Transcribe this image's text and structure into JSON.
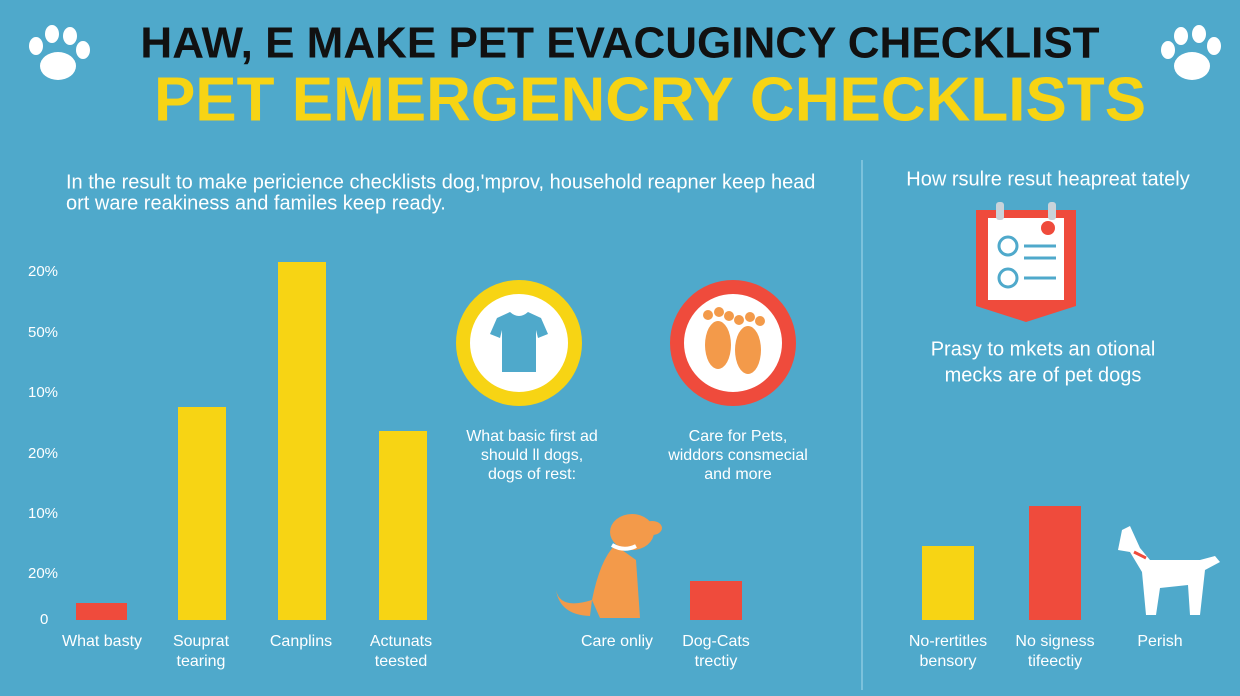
{
  "header": {
    "title": "HAW, E MAKE PET EVACUGINCY CHECKLIST",
    "subtitle": "PET EMERGENCRY CHECKLISTS"
  },
  "intro": {
    "lines": [
      "In the result to make pericience checklists dog,'mprov, household reapner keep head",
      "ort ware reakiness and familes keep ready."
    ]
  },
  "axis_labels": [
    "20%",
    "50%",
    "10%",
    "20%",
    "10%",
    "20%",
    "0"
  ],
  "left_labels": [
    [
      "What basty"
    ],
    [
      "Souprat",
      "tearing"
    ],
    [
      "Canplins"
    ],
    [
      "Actunats",
      "teested"
    ]
  ],
  "cards": [
    {
      "lines": [
        "What basic first ad",
        "should ll dogs,",
        "dogs of rest:"
      ]
    },
    {
      "lines": [
        "Care for Pets,",
        "widdors consmecial",
        "and more"
      ]
    }
  ],
  "middle_labels": [
    [
      "Care onliy"
    ],
    [
      "Dog-Cats",
      "trectiy"
    ]
  ],
  "right_panel": {
    "heading": "How rsulre resut heapreat tately",
    "lines": [
      "Prasy to mkets an otional",
      "mecks are of pet dogs"
    ],
    "labels": [
      [
        "No-rertitles",
        "bensory"
      ],
      [
        "No signess",
        "tifeectiy"
      ],
      [
        "Perish"
      ]
    ]
  }
}
